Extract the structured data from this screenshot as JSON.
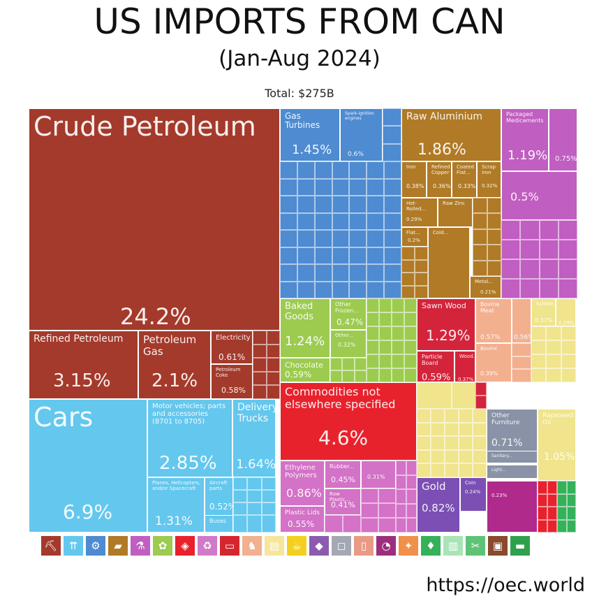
{
  "title": "US IMPORTS FROM CAN",
  "subtitle": "(Jan-Aug 2024)",
  "total": "Total: $275B",
  "source": "https://oec.world",
  "colors": {
    "mineral": "#a43a2b",
    "transport": "#64c7ee",
    "machines": "#4e8bd1",
    "metals": "#b07a26",
    "chemicals": "#c05ec1",
    "food": "#9ccb4f",
    "wood": "#d4243b",
    "other": "#e8222c",
    "plastics": "#d372c6",
    "animal": "#f2b08f",
    "fats": "#f0e48c",
    "instruments": "#8992a6",
    "stone": "#7b4fb4",
    "misc": "#b02a8c",
    "textiles": "#35b15a"
  },
  "chart_data": {
    "type": "treemap",
    "title": "US IMPORTS FROM CAN",
    "subtitle": "(Jan-Aug 2024)",
    "total": "Total: $275B",
    "items": [
      {
        "label": "Crude Petroleum",
        "value": "24.2%"
      },
      {
        "label": "Refined Petroleum",
        "value": "3.15%"
      },
      {
        "label": "Petroleum Gas",
        "value": "2.1%"
      },
      {
        "label": "Electricity",
        "value": "0.61%"
      },
      {
        "label": "Petroleum Coke",
        "value": "0.58%"
      },
      {
        "label": "Cars",
        "value": "6.9%"
      },
      {
        "label": "Motor vehicles; parts and accessories (8701 to 8705)",
        "value": "2.85%"
      },
      {
        "label": "Delivery Trucks",
        "value": "1.64%"
      },
      {
        "label": "Planes, Helicopters, and/or Spacecraft",
        "value": "1.31%"
      },
      {
        "label": "Aircraft parts",
        "value": "0.52%"
      },
      {
        "label": "Buses",
        "value": ""
      },
      {
        "label": "Gas Turbines",
        "value": "1.45%"
      },
      {
        "label": "Spark-ignition engines",
        "value": "0.6%"
      },
      {
        "label": "Raw Aluminium",
        "value": "1.86%"
      },
      {
        "label": "Iron",
        "value": "0.38%"
      },
      {
        "label": "Refined Copper",
        "value": "0.36%"
      },
      {
        "label": "Coated Flat...",
        "value": "0.33%"
      },
      {
        "label": "Scrap Iron",
        "value": "0.32%"
      },
      {
        "label": "Hot-Rolled...",
        "value": "0.29%"
      },
      {
        "label": "Raw Zinc",
        "value": ""
      },
      {
        "label": "Flat...",
        "value": "0.2%"
      },
      {
        "label": "Cold...",
        "value": ""
      },
      {
        "label": "Metal...",
        "value": "0.21%"
      },
      {
        "label": "Packaged Medicaments",
        "value": "1.19%"
      },
      {
        "label": "",
        "value": "0.75%"
      },
      {
        "label": "",
        "value": "0.5%"
      },
      {
        "label": "Baked Goods",
        "value": "1.24%"
      },
      {
        "label": "Other Frozen...",
        "value": "0.47%"
      },
      {
        "label": "Other...",
        "value": "0.32%"
      },
      {
        "label": "Chocolate",
        "value": "0.59%"
      },
      {
        "label": "Sawn Wood",
        "value": "1.29%"
      },
      {
        "label": "Particle Board",
        "value": "0.59%"
      },
      {
        "label": "Wood...",
        "value": "0.37%"
      },
      {
        "label": "Bovine Meat",
        "value": "0.57%"
      },
      {
        "label": "",
        "value": "0.56%"
      },
      {
        "label": "Bovine",
        "value": "0.39%"
      },
      {
        "label": "Sulfate...",
        "value": "0.37%"
      },
      {
        "label": "",
        "value": "0.29%"
      },
      {
        "label": "Commodities not elsewhere specified",
        "value": "4.6%"
      },
      {
        "label": "Ethylene Polymers",
        "value": "0.86%"
      },
      {
        "label": "Rubber...",
        "value": "0.45%"
      },
      {
        "label": "",
        "value": "0.31%"
      },
      {
        "label": "Raw Plastic...",
        "value": "0.41%"
      },
      {
        "label": "Plastic Lids",
        "value": "0.55%"
      },
      {
        "label": "Other Furniture",
        "value": "0.71%"
      },
      {
        "label": "Rapeseed Oil",
        "value": "1.05%"
      },
      {
        "label": "Sanitary...",
        "value": ""
      },
      {
        "label": "Light...",
        "value": ""
      },
      {
        "label": "Gold",
        "value": "0.82%"
      },
      {
        "label": "Coin",
        "value": "0.24%"
      },
      {
        "label": "",
        "value": "0.23%"
      }
    ]
  },
  "legend_icons": [
    {
      "name": "mineral-products-icon",
      "glyph": "⛏",
      "color": "#a43a2b"
    },
    {
      "name": "transportation-icon",
      "glyph": "⇈",
      "color": "#64c7ee"
    },
    {
      "name": "machines-icon",
      "glyph": "⚙",
      "color": "#4e8bd1"
    },
    {
      "name": "metals-icon",
      "glyph": "▰",
      "color": "#b07a26"
    },
    {
      "name": "chemical-products-icon",
      "glyph": "⚗",
      "color": "#c05ec1"
    },
    {
      "name": "vegetable-products-icon",
      "glyph": "✿",
      "color": "#9ccb4f"
    },
    {
      "name": "other-icon",
      "glyph": "◈",
      "color": "#e8222c"
    },
    {
      "name": "paper-goods-icon",
      "glyph": "♻",
      "color": "#d07bc7"
    },
    {
      "name": "plastics-icon",
      "glyph": "▭",
      "color": "#d5262f"
    },
    {
      "name": "animal-products-icon",
      "glyph": "♞",
      "color": "#f2b08f"
    },
    {
      "name": "animal-hides-icon",
      "glyph": "▤",
      "color": "#f6e59a"
    },
    {
      "name": "foodstuffs-icon",
      "glyph": "☕",
      "color": "#f3d020"
    },
    {
      "name": "precious-metals-icon",
      "glyph": "◆",
      "color": "#8b5bb0"
    },
    {
      "name": "stone-glass-icon",
      "glyph": "◻",
      "color": "#a4a8b4"
    },
    {
      "name": "instruments-icon",
      "glyph": "▯",
      "color": "#e99a86"
    },
    {
      "name": "miscellaneous-icon",
      "glyph": "◔",
      "color": "#9c2f7d"
    },
    {
      "name": "weapons-icon",
      "glyph": "✦",
      "color": "#f0904a"
    },
    {
      "name": "textiles-icon",
      "glyph": "♦",
      "color": "#35b15a"
    },
    {
      "name": "wood-products-icon",
      "glyph": "▥",
      "color": "#a9e4b6"
    },
    {
      "name": "footwear-icon",
      "glyph": "✂",
      "color": "#5fc377"
    },
    {
      "name": "arts-antiques-icon",
      "glyph": "▣",
      "color": "#8a4a2c"
    },
    {
      "name": "vegetable-oils-icon",
      "glyph": "▬",
      "color": "#2fa14c"
    }
  ]
}
